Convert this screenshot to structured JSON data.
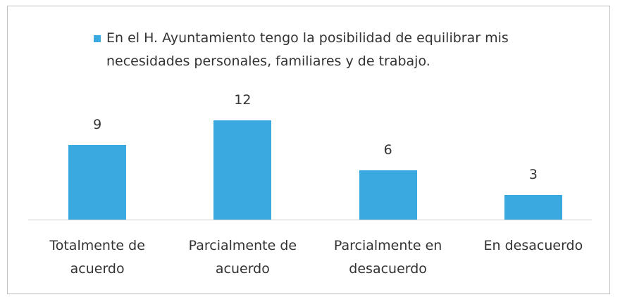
{
  "chart_data": {
    "type": "bar",
    "categories": [
      "Totalmente de acuerdo",
      "Parcialmente de acuerdo",
      "Parcialmente en desacuerdo",
      "En desacuerdo"
    ],
    "series": [
      {
        "name": "En el H. Ayuntamiento tengo la posibilidad de equilibrar mis necesidades personales, familiares y de trabajo.",
        "color": "#3aa9df",
        "values": [
          9,
          12,
          6,
          3
        ]
      }
    ],
    "legend": "top"
  }
}
